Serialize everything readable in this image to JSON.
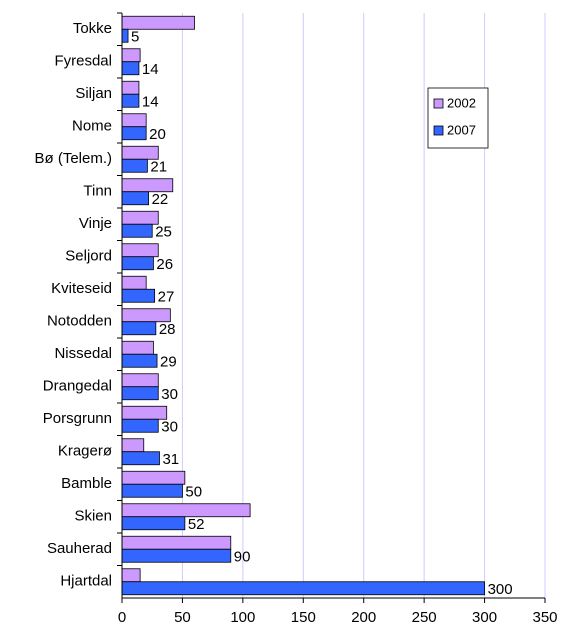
{
  "chart_data": {
    "type": "bar",
    "orientation": "horizontal",
    "categories": [
      "Tokke",
      "Fyresdal",
      "Siljan",
      "Nome",
      "Bø (Telem.)",
      "Tinn",
      "Vinje",
      "Seljord",
      "Kviteseid",
      "Notodden",
      "Nissedal",
      "Drangedal",
      "Porsgrunn",
      "Kragerø",
      "Bamble",
      "Skien",
      "Sauherad",
      "Hjartdal"
    ],
    "series": [
      {
        "name": "2002",
        "color": "#cc99ff",
        "values": [
          60,
          15,
          14,
          20,
          30,
          42,
          30,
          30,
          20,
          40,
          26,
          30,
          37,
          18,
          52,
          106,
          90,
          15
        ]
      },
      {
        "name": "2007",
        "color": "#3366ff",
        "values": [
          5,
          14,
          14,
          20,
          21,
          22,
          25,
          26,
          27,
          28,
          29,
          30,
          30,
          31,
          50,
          52,
          90,
          300
        ],
        "data_labels": true
      }
    ],
    "xlim": [
      0,
      350
    ],
    "xticks": [
      0,
      50,
      100,
      150,
      200,
      250,
      300,
      350
    ],
    "grid": true,
    "grid_color": "#ccccff"
  }
}
